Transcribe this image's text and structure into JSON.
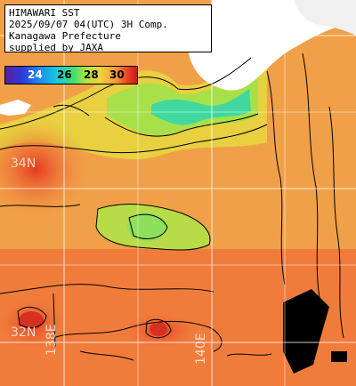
{
  "info": {
    "line1": "HIMAWARI SST",
    "line2": "2025/09/07 04(UTC) 3H Comp.",
    "line3": "Kanagawa Prefecture",
    "line4": "supplied by JAXA"
  },
  "legend": {
    "ticks": [
      "24",
      "26",
      "28",
      "30"
    ],
    "colors": [
      "#5a20a0",
      "#2b3bd8",
      "#1e8cf0",
      "#18c8e0",
      "#40e070",
      "#b8e43c",
      "#f0d040",
      "#f29a38",
      "#e84020",
      "#c81818"
    ]
  },
  "grid_labels": {
    "lat_34": "34N",
    "lat_32": "32N",
    "lon_138": "138E",
    "lon_140": "140E"
  }
}
